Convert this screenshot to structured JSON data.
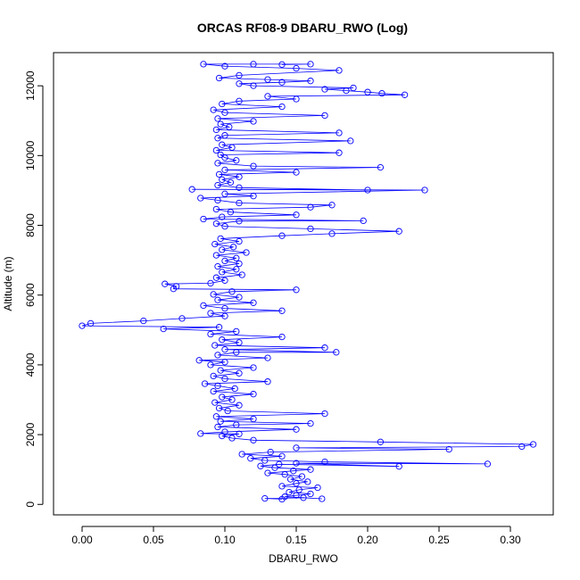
{
  "chart_data": {
    "type": "line",
    "title": "ORCAS RF08-9 DBARU_RWO (Log)",
    "xlabel": "DBARU_RWO",
    "ylabel": "Altitude (m)",
    "xlim": [
      -0.02,
      0.33
    ],
    "ylim": [
      -300,
      12950
    ],
    "x_ticks": [
      0.0,
      0.05,
      0.1,
      0.15,
      0.2,
      0.25,
      0.3
    ],
    "x_tick_labels": [
      "0.00",
      "0.05",
      "0.10",
      "0.15",
      "0.20",
      "0.25",
      "0.30"
    ],
    "y_ticks": [
      0,
      2000,
      4000,
      6000,
      8000,
      10000,
      12000
    ],
    "y_tick_labels": [
      "0",
      "2000",
      "4000",
      "6000",
      "8000",
      "10000",
      "12000"
    ],
    "marker": "open-circle",
    "grid": false,
    "legend": "none",
    "series": [
      {
        "color": "#0000ff",
        "points": [
          [
            0.14,
            150
          ],
          [
            0.128,
            170
          ],
          [
            0.155,
            190
          ],
          [
            0.168,
            160
          ],
          [
            0.142,
            220
          ],
          [
            0.15,
            260
          ],
          [
            0.16,
            300
          ],
          [
            0.145,
            350
          ],
          [
            0.152,
            420
          ],
          [
            0.165,
            480
          ],
          [
            0.14,
            520
          ],
          [
            0.15,
            600
          ],
          [
            0.158,
            650
          ],
          [
            0.146,
            720
          ],
          [
            0.154,
            800
          ],
          [
            0.142,
            860
          ],
          [
            0.13,
            900
          ],
          [
            0.148,
            960
          ],
          [
            0.16,
            1000
          ],
          [
            0.135,
            1050
          ],
          [
            0.125,
            1100
          ],
          [
            0.138,
            1150
          ],
          [
            0.222,
            1090
          ],
          [
            0.15,
            1180
          ],
          [
            0.284,
            1160
          ],
          [
            0.17,
            1220
          ],
          [
            0.128,
            1260
          ],
          [
            0.118,
            1320
          ],
          [
            0.14,
            1380
          ],
          [
            0.112,
            1440
          ],
          [
            0.132,
            1500
          ],
          [
            0.257,
            1580
          ],
          [
            0.15,
            1620
          ],
          [
            0.308,
            1660
          ],
          [
            0.316,
            1720
          ],
          [
            0.209,
            1790
          ],
          [
            0.12,
            1840
          ],
          [
            0.105,
            1900
          ],
          [
            0.098,
            1960
          ],
          [
            0.11,
            2020
          ],
          [
            0.083,
            2030
          ],
          [
            0.1,
            2080
          ],
          [
            0.15,
            2150
          ],
          [
            0.095,
            2220
          ],
          [
            0.108,
            2280
          ],
          [
            0.16,
            2320
          ],
          [
            0.097,
            2380
          ],
          [
            0.12,
            2450
          ],
          [
            0.094,
            2520
          ],
          [
            0.17,
            2600
          ],
          [
            0.102,
            2680
          ],
          [
            0.096,
            2760
          ],
          [
            0.11,
            2840
          ],
          [
            0.093,
            2920
          ],
          [
            0.105,
            3000
          ],
          [
            0.098,
            3080
          ],
          [
            0.12,
            3160
          ],
          [
            0.092,
            3240
          ],
          [
            0.107,
            3320
          ],
          [
            0.095,
            3400
          ],
          [
            0.086,
            3460
          ],
          [
            0.13,
            3520
          ],
          [
            0.1,
            3600
          ],
          [
            0.092,
            3680
          ],
          [
            0.11,
            3760
          ],
          [
            0.097,
            3840
          ],
          [
            0.12,
            3920
          ],
          [
            0.09,
            4000
          ],
          [
            0.1,
            4080
          ],
          [
            0.082,
            4130
          ],
          [
            0.13,
            4200
          ],
          [
            0.095,
            4280
          ],
          [
            0.108,
            4360
          ],
          [
            0.178,
            4360
          ],
          [
            0.1,
            4440
          ],
          [
            0.17,
            4490
          ],
          [
            0.093,
            4560
          ],
          [
            0.11,
            4640
          ],
          [
            0.098,
            4720
          ],
          [
            0.14,
            4800
          ],
          [
            0.09,
            4880
          ],
          [
            0.108,
            4960
          ],
          [
            0.057,
            5030
          ],
          [
            0.096,
            5080
          ],
          [
            0.0,
            5120
          ],
          [
            0.006,
            5190
          ],
          [
            0.043,
            5260
          ],
          [
            0.07,
            5330
          ],
          [
            0.1,
            5400
          ],
          [
            0.09,
            5480
          ],
          [
            0.14,
            5550
          ],
          [
            0.1,
            5620
          ],
          [
            0.085,
            5700
          ],
          [
            0.12,
            5780
          ],
          [
            0.095,
            5860
          ],
          [
            0.11,
            5940
          ],
          [
            0.092,
            6020
          ],
          [
            0.105,
            6100
          ],
          [
            0.15,
            6150
          ],
          [
            0.064,
            6180
          ],
          [
            0.066,
            6250
          ],
          [
            0.058,
            6320
          ],
          [
            0.09,
            6340
          ],
          [
            0.1,
            6420
          ],
          [
            0.094,
            6500
          ],
          [
            0.112,
            6580
          ],
          [
            0.098,
            6660
          ],
          [
            0.108,
            6740
          ],
          [
            0.095,
            6820
          ],
          [
            0.11,
            6900
          ],
          [
            0.1,
            6980
          ],
          [
            0.108,
            7060
          ],
          [
            0.094,
            7140
          ],
          [
            0.115,
            7220
          ],
          [
            0.098,
            7300
          ],
          [
            0.106,
            7380
          ],
          [
            0.093,
            7460
          ],
          [
            0.11,
            7540
          ],
          [
            0.097,
            7620
          ],
          [
            0.14,
            7700
          ],
          [
            0.175,
            7760
          ],
          [
            0.222,
            7830
          ],
          [
            0.16,
            7900
          ],
          [
            0.1,
            7970
          ],
          [
            0.094,
            8050
          ],
          [
            0.11,
            8120
          ],
          [
            0.197,
            8130
          ],
          [
            0.085,
            8180
          ],
          [
            0.098,
            8240
          ],
          [
            0.15,
            8300
          ],
          [
            0.104,
            8380
          ],
          [
            0.094,
            8460
          ],
          [
            0.16,
            8520
          ],
          [
            0.175,
            8580
          ],
          [
            0.11,
            8640
          ],
          [
            0.095,
            8720
          ],
          [
            0.083,
            8780
          ],
          [
            0.12,
            8840
          ],
          [
            0.1,
            8900
          ],
          [
            0.24,
            9010
          ],
          [
            0.077,
            9030
          ],
          [
            0.2,
            9010
          ],
          [
            0.11,
            9080
          ],
          [
            0.095,
            9150
          ],
          [
            0.104,
            9230
          ],
          [
            0.098,
            9310
          ],
          [
            0.11,
            9390
          ],
          [
            0.096,
            9460
          ],
          [
            0.15,
            9520
          ],
          [
            0.1,
            9590
          ],
          [
            0.209,
            9660
          ],
          [
            0.12,
            9700
          ],
          [
            0.095,
            9780
          ],
          [
            0.108,
            9860
          ],
          [
            0.1,
            9940
          ],
          [
            0.097,
            10020
          ],
          [
            0.18,
            10080
          ],
          [
            0.094,
            10150
          ],
          [
            0.105,
            10230
          ],
          [
            0.098,
            10310
          ],
          [
            0.188,
            10420
          ],
          [
            0.095,
            10500
          ],
          [
            0.1,
            10580
          ],
          [
            0.18,
            10650
          ],
          [
            0.094,
            10740
          ],
          [
            0.103,
            10820
          ],
          [
            0.097,
            10900
          ],
          [
            0.12,
            10980
          ],
          [
            0.095,
            11060
          ],
          [
            0.17,
            11150
          ],
          [
            0.1,
            11230
          ],
          [
            0.092,
            11310
          ],
          [
            0.14,
            11400
          ],
          [
            0.098,
            11480
          ],
          [
            0.11,
            11560
          ],
          [
            0.15,
            11620
          ],
          [
            0.13,
            11700
          ],
          [
            0.226,
            11740
          ],
          [
            0.21,
            11780
          ],
          [
            0.2,
            11820
          ],
          [
            0.185,
            11860
          ],
          [
            0.17,
            11900
          ],
          [
            0.19,
            11940
          ],
          [
            0.12,
            12000
          ],
          [
            0.11,
            12060
          ],
          [
            0.14,
            12100
          ],
          [
            0.16,
            12140
          ],
          [
            0.13,
            12180
          ],
          [
            0.096,
            12220
          ],
          [
            0.11,
            12300
          ],
          [
            0.18,
            12440
          ],
          [
            0.15,
            12500
          ],
          [
            0.1,
            12560
          ],
          [
            0.085,
            12620
          ],
          [
            0.12,
            12620
          ],
          [
            0.16,
            12620
          ],
          [
            0.14,
            12610
          ]
        ]
      }
    ]
  }
}
